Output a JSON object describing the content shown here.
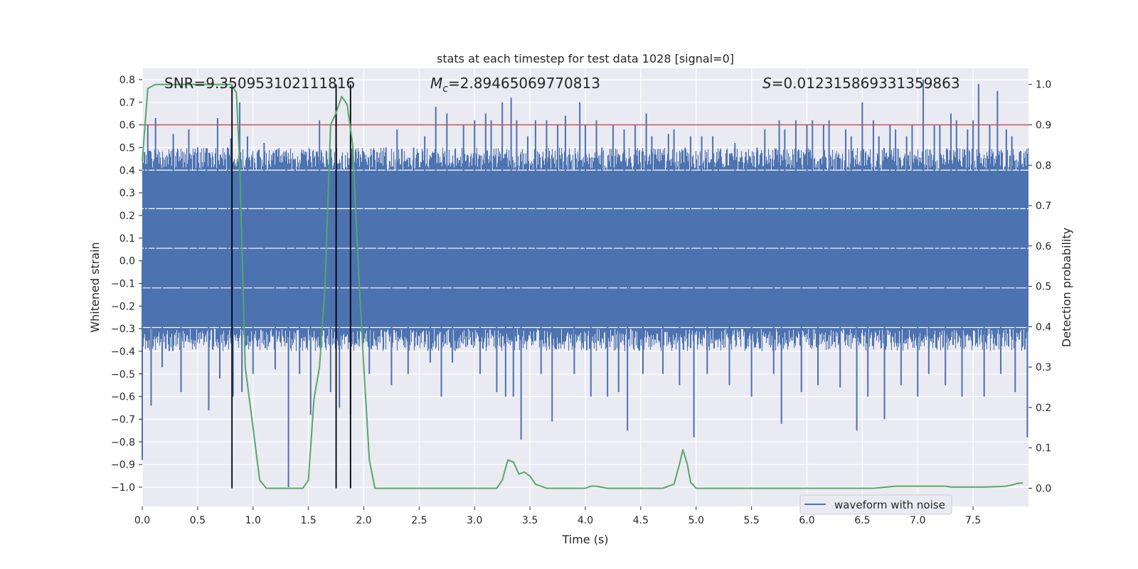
{
  "chart_data": {
    "type": "line",
    "title": "stats at each timestep for test data 1028 [signal=0]",
    "xlabel": "Time (s)",
    "ylabel": "Whitened strain",
    "y2label": "Detection probability",
    "xlim": [
      0.0,
      8.0
    ],
    "ylim": [
      -1.085,
      0.85
    ],
    "y2lim": [
      -0.045,
      1.04
    ],
    "xticks": [
      0.0,
      0.5,
      1.0,
      1.5,
      2.0,
      2.5,
      3.0,
      3.5,
      4.0,
      4.5,
      5.0,
      5.5,
      6.0,
      6.5,
      7.0,
      7.5
    ],
    "xtick_labels": [
      "0.0",
      "0.5",
      "1.0",
      "1.5",
      "2.0",
      "2.5",
      "3.0",
      "3.5",
      "4.0",
      "4.5",
      "5.0",
      "5.5",
      "6.0",
      "6.5",
      "7.0",
      "7.5"
    ],
    "yticks": [
      0.8,
      0.7,
      0.6,
      0.5,
      0.4,
      0.3,
      0.2,
      0.1,
      0.0,
      -0.1,
      -0.2,
      -0.3,
      -0.4,
      -0.5,
      -0.6,
      -0.7,
      -0.8,
      -0.9,
      -1.0
    ],
    "ytick_labels": [
      "0.8",
      "0.7",
      "0.6",
      "0.5",
      "0.4",
      "0.3",
      "0.2",
      "0.1",
      "0.0",
      "-0.1",
      "-0.2",
      "-0.3",
      "-0.4",
      "-0.5",
      "-0.6",
      "-0.7",
      "-0.8",
      "-0.9",
      "-1.0"
    ],
    "y2ticks": [
      1.0,
      0.9,
      0.8,
      0.7,
      0.6,
      0.5,
      0.4,
      0.3,
      0.2,
      0.1,
      0.0
    ],
    "y2tick_labels": [
      "1.0",
      "0.9",
      "0.8",
      "0.7",
      "0.6",
      "0.5",
      "0.4",
      "0.3",
      "0.2",
      "0.1",
      "0.0"
    ],
    "annotations": {
      "snr": "SNR=9.350953102111816",
      "mc_prefix": "M",
      "mc_sub": "c",
      "mc_value": "=2.89465069770813",
      "s_prefix": "S",
      "s_value": "=0.012315869331359863"
    },
    "threshold": {
      "y": 0.9,
      "axis": "right",
      "color": "#c44e52"
    },
    "vlines": [
      0.81,
      1.75,
      1.88
    ],
    "waveform": {
      "name": "waveform with noise",
      "color": "#4c72b0",
      "core_band": [
        -0.3,
        0.4
      ],
      "excursions": [
        [
          0.0,
          -0.88
        ],
        [
          0.02,
          0.48
        ],
        [
          0.05,
          0.6
        ],
        [
          0.08,
          -0.64
        ],
        [
          0.12,
          0.63
        ],
        [
          0.18,
          -0.47
        ],
        [
          0.28,
          0.56
        ],
        [
          0.35,
          -0.58
        ],
        [
          0.42,
          0.58
        ],
        [
          0.5,
          0.5
        ],
        [
          0.58,
          0.47
        ],
        [
          0.6,
          -0.66
        ],
        [
          0.68,
          0.63
        ],
        [
          0.7,
          -0.52
        ],
        [
          0.77,
          0.5
        ],
        [
          0.8,
          0.54
        ],
        [
          0.82,
          -0.6
        ],
        [
          0.88,
          0.7
        ],
        [
          0.9,
          -0.58
        ],
        [
          0.95,
          0.55
        ],
        [
          1.0,
          -0.5
        ],
        [
          1.1,
          0.52
        ],
        [
          1.2,
          -0.48
        ],
        [
          1.3,
          0.48
        ],
        [
          1.32,
          -1.0
        ],
        [
          1.38,
          0.45
        ],
        [
          1.42,
          -0.5
        ],
        [
          1.48,
          0.48
        ],
        [
          1.52,
          -0.68
        ],
        [
          1.6,
          0.62
        ],
        [
          1.7,
          -0.58
        ],
        [
          1.75,
          0.68
        ],
        [
          1.78,
          -0.65
        ],
        [
          1.88,
          -0.68
        ],
        [
          1.93,
          0.48
        ],
        [
          2.0,
          0.48
        ],
        [
          2.05,
          -0.5
        ],
        [
          2.12,
          0.48
        ],
        [
          2.2,
          0.5
        ],
        [
          2.25,
          -0.55
        ],
        [
          2.3,
          0.58
        ],
        [
          2.4,
          -0.5
        ],
        [
          2.45,
          0.5
        ],
        [
          2.55,
          0.55
        ],
        [
          2.6,
          -0.45
        ],
        [
          2.65,
          0.68
        ],
        [
          2.7,
          -0.6
        ],
        [
          2.75,
          0.65
        ],
        [
          2.8,
          -0.45
        ],
        [
          2.9,
          0.6
        ],
        [
          3.0,
          0.62
        ],
        [
          3.05,
          -0.5
        ],
        [
          3.1,
          0.65
        ],
        [
          3.15,
          0.62
        ],
        [
          3.2,
          -0.58
        ],
        [
          3.25,
          0.7
        ],
        [
          3.28,
          -0.6
        ],
        [
          3.33,
          0.72
        ],
        [
          3.35,
          -0.6
        ],
        [
          3.38,
          0.62
        ],
        [
          3.42,
          -0.79
        ],
        [
          3.48,
          0.55
        ],
        [
          3.55,
          0.62
        ],
        [
          3.6,
          -0.5
        ],
        [
          3.65,
          0.62
        ],
        [
          3.7,
          -0.71
        ],
        [
          3.75,
          0.6
        ],
        [
          3.82,
          0.64
        ],
        [
          3.9,
          -0.5
        ],
        [
          3.95,
          0.7
        ],
        [
          4.0,
          0.6
        ],
        [
          4.05,
          -0.6
        ],
        [
          4.1,
          0.62
        ],
        [
          4.15,
          0.5
        ],
        [
          4.2,
          -0.6
        ],
        [
          4.25,
          0.6
        ],
        [
          4.3,
          -0.58
        ],
        [
          4.35,
          0.58
        ],
        [
          4.38,
          -0.75
        ],
        [
          4.4,
          -0.2
        ],
        [
          4.45,
          0.6
        ],
        [
          4.52,
          -0.5
        ],
        [
          4.55,
          0.65
        ],
        [
          4.6,
          0.55
        ],
        [
          4.7,
          -0.5
        ],
        [
          4.75,
          0.56
        ],
        [
          4.8,
          0.58
        ],
        [
          4.85,
          -0.55
        ],
        [
          4.9,
          0.5
        ],
        [
          4.95,
          0.55
        ],
        [
          4.98,
          -0.78
        ],
        [
          5.05,
          0.55
        ],
        [
          5.1,
          -0.5
        ],
        [
          5.15,
          0.55
        ],
        [
          5.2,
          0.45
        ],
        [
          5.3,
          -0.55
        ],
        [
          5.35,
          0.52
        ],
        [
          5.45,
          0.48
        ],
        [
          5.5,
          -0.6
        ],
        [
          5.55,
          0.5
        ],
        [
          5.62,
          0.58
        ],
        [
          5.7,
          -0.5
        ],
        [
          5.75,
          0.62
        ],
        [
          5.77,
          -0.72
        ],
        [
          5.8,
          0.58
        ],
        [
          5.9,
          0.62
        ],
        [
          5.95,
          -0.58
        ],
        [
          6.0,
          0.6
        ],
        [
          6.05,
          0.62
        ],
        [
          6.1,
          -0.55
        ],
        [
          6.15,
          0.6
        ],
        [
          6.2,
          0.62
        ],
        [
          6.3,
          -0.56
        ],
        [
          6.35,
          0.58
        ],
        [
          6.4,
          0.55
        ],
        [
          6.45,
          -0.75
        ],
        [
          6.5,
          0.7
        ],
        [
          6.55,
          -0.6
        ],
        [
          6.6,
          0.62
        ],
        [
          6.65,
          0.55
        ],
        [
          6.7,
          -0.7
        ],
        [
          6.75,
          0.6
        ],
        [
          6.8,
          0.58
        ],
        [
          6.85,
          -0.55
        ],
        [
          6.9,
          0.55
        ],
        [
          6.95,
          0.6
        ],
        [
          7.0,
          -0.6
        ],
        [
          7.05,
          0.8
        ],
        [
          7.1,
          -0.5
        ],
        [
          7.15,
          0.6
        ],
        [
          7.2,
          0.6
        ],
        [
          7.25,
          -0.55
        ],
        [
          7.3,
          0.65
        ],
        [
          7.35,
          0.62
        ],
        [
          7.4,
          -0.6
        ],
        [
          7.45,
          0.58
        ],
        [
          7.5,
          0.62
        ],
        [
          7.55,
          0.78
        ],
        [
          7.6,
          -0.6
        ],
        [
          7.65,
          0.6
        ],
        [
          7.72,
          0.75
        ],
        [
          7.75,
          -0.5
        ],
        [
          7.8,
          0.58
        ],
        [
          7.85,
          0.55
        ],
        [
          7.88,
          -0.58
        ],
        [
          7.92,
          0.48
        ],
        [
          7.98,
          0.35
        ],
        [
          7.99,
          -0.78
        ]
      ]
    },
    "probability": {
      "color": "#55a868",
      "x": [
        0.0,
        0.05,
        0.12,
        0.2,
        0.3,
        0.4,
        0.5,
        0.6,
        0.7,
        0.8,
        0.85,
        0.88,
        0.93,
        1.0,
        1.06,
        1.12,
        1.2,
        1.3,
        1.4,
        1.45,
        1.5,
        1.55,
        1.6,
        1.65,
        1.7,
        1.75,
        1.8,
        1.85,
        1.9,
        1.95,
        2.0,
        2.05,
        2.1,
        2.15,
        2.2,
        2.3,
        2.5,
        2.6,
        2.7,
        2.8,
        2.9,
        3.0,
        3.1,
        3.2,
        3.25,
        3.3,
        3.35,
        3.4,
        3.45,
        3.5,
        3.55,
        3.6,
        3.65,
        3.7,
        3.8,
        3.9,
        4.0,
        4.05,
        4.1,
        4.2,
        4.3,
        4.4,
        4.5,
        4.6,
        4.7,
        4.8,
        4.85,
        4.88,
        4.92,
        4.95,
        5.0,
        5.1,
        5.2,
        5.3,
        5.4,
        5.5,
        5.6,
        5.7,
        5.8,
        6.0,
        6.2,
        6.4,
        6.6,
        6.8,
        6.95,
        7.0,
        7.1,
        7.2,
        7.25,
        7.3,
        7.4,
        7.5,
        7.6,
        7.7,
        7.8,
        7.85,
        7.9,
        7.95
      ],
      "y": [
        0.81,
        0.99,
        1.0,
        1.0,
        1.0,
        1.0,
        1.0,
        1.0,
        1.0,
        1.0,
        0.98,
        0.8,
        0.3,
        0.15,
        0.02,
        0.0,
        0.0,
        0.0,
        0.0,
        0.0,
        0.02,
        0.22,
        0.3,
        0.5,
        0.9,
        0.93,
        0.97,
        0.95,
        0.85,
        0.55,
        0.3,
        0.07,
        0.0,
        0.0,
        0.0,
        0.0,
        0.0,
        0.0,
        0.0,
        0.0,
        0.0,
        0.0,
        0.0,
        0.0,
        0.02,
        0.07,
        0.065,
        0.035,
        0.04,
        0.03,
        0.01,
        0.005,
        0.0,
        0.0,
        0.0,
        0.0,
        0.0,
        0.005,
        0.005,
        0.0,
        0.0,
        0.0,
        0.0,
        0.0,
        0.0,
        0.01,
        0.06,
        0.095,
        0.06,
        0.015,
        0.0,
        0.0,
        0.0,
        0.0,
        0.0,
        0.0,
        0.0,
        0.0,
        0.0,
        0.0,
        0.0,
        0.0,
        0.0,
        0.005,
        0.005,
        0.005,
        0.005,
        0.005,
        0.005,
        0.003,
        0.003,
        0.003,
        0.003,
        0.004,
        0.005,
        0.008,
        0.012,
        0.013
      ]
    },
    "legend": {
      "label": "waveform with noise",
      "placement": "lower-right"
    }
  }
}
